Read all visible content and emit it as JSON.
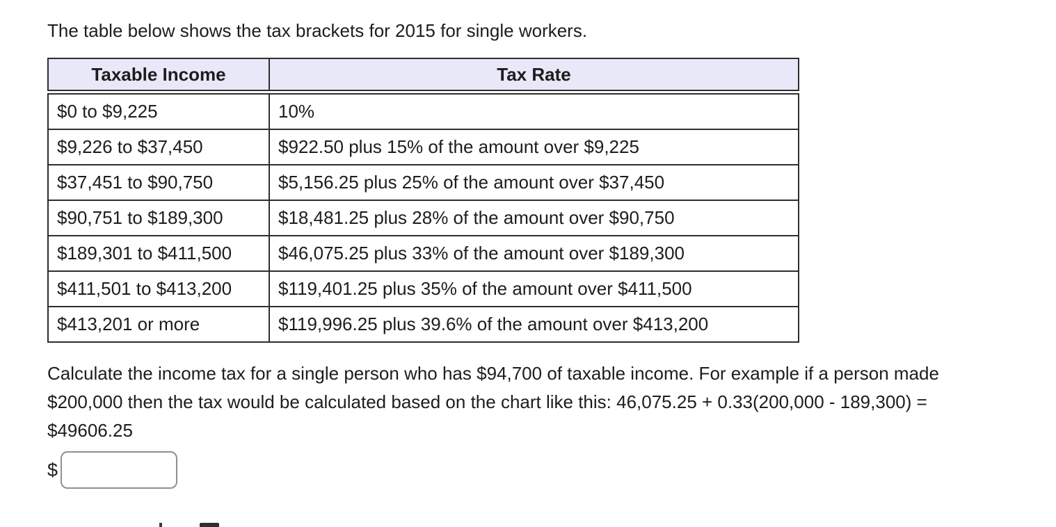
{
  "page": {
    "intro": "The table below shows the tax brackets for 2015 for single workers.",
    "question": "Calculate the income tax for a single person who has $94,700 of taxable income. For example if a person made $200,000 then the tax would be calculated based on the chart like this: 46,075.25 + 0.33(200,000 - 189,300) = $49606.25"
  },
  "table": {
    "headers": [
      "Taxable Income",
      "Tax Rate"
    ],
    "rows": [
      [
        "$0 to $9,225",
        "10%"
      ],
      [
        "$9,226 to $37,450",
        "$922.50 plus 15% of the amount over $9,225"
      ],
      [
        "$37,451 to $90,750",
        "$5,156.25 plus 25% of the amount over $37,450"
      ],
      [
        "$90,751 to $189,300",
        "$18,481.25 plus 28% of the amount over $90,750"
      ],
      [
        "$189,301 to $411,500",
        "$46,075.25 plus 33% of the amount over $189,300"
      ],
      [
        "$411,501 to $413,200",
        "$119,401.25 plus 35% of the amount over $411,500"
      ],
      [
        "$413,201 or more",
        "$119,996.25 plus 39.6% of the amount over $413,200"
      ]
    ],
    "colors": {
      "header_bg": "#e9e8f8",
      "border": "#2e2e2e"
    }
  },
  "answer": {
    "currency_prefix": "$",
    "value": ""
  }
}
